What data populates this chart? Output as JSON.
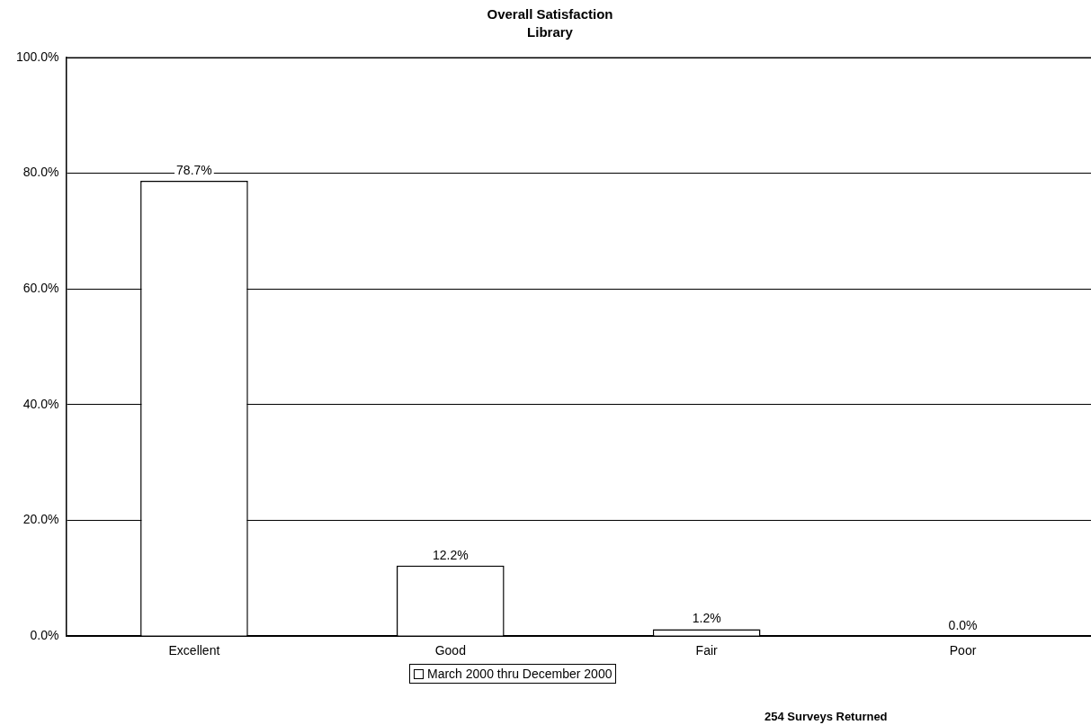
{
  "chart_data": {
    "type": "bar",
    "title": "Overall Satisfaction",
    "subtitle": "Library",
    "categories": [
      "Excellent",
      "Good",
      "Fair",
      "Poor"
    ],
    "series": [
      {
        "name": "March 2000 thru December 2000",
        "color": "#ffffff",
        "values": [
          78.7,
          12.2,
          1.2,
          0.0
        ],
        "value_labels": [
          "78.7%",
          "12.2%",
          "1.2%",
          "0.0%"
        ]
      }
    ],
    "ylim": [
      0,
      100
    ],
    "yticks": [
      {
        "value": 0,
        "label": "0.0%"
      },
      {
        "value": 20,
        "label": "20.0%"
      },
      {
        "value": 40,
        "label": "40.0%"
      },
      {
        "value": 60,
        "label": "60.0%"
      },
      {
        "value": 80,
        "label": "80.0%"
      },
      {
        "value": 100,
        "label": "100.0%"
      }
    ],
    "grid": "y",
    "legend": "bottom",
    "annotations": [
      "254 Surveys Returned"
    ]
  }
}
